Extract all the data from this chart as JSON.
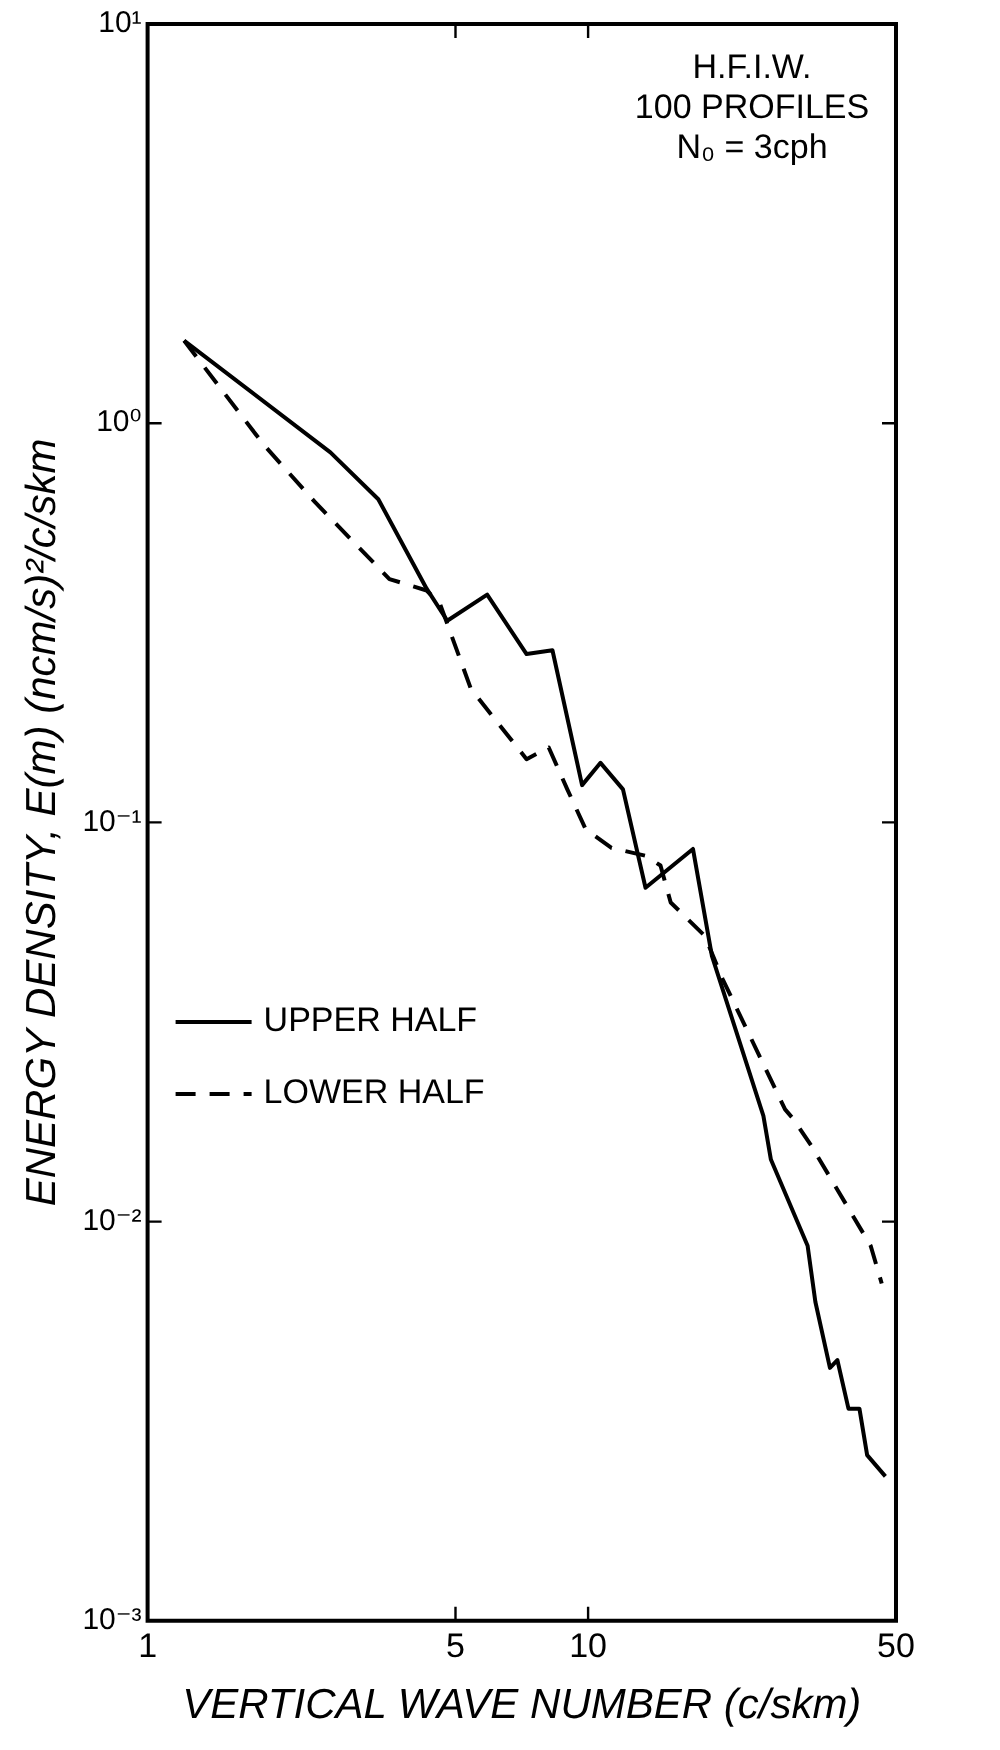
{
  "chart_data": {
    "type": "line",
    "xlabel": "VERTICAL WAVE NUMBER (c/skm)",
    "ylabel": "ENERGY DENSITY, E(m) (ncm/s)²/c/skm",
    "log": "xy",
    "xlim": [
      1,
      50
    ],
    "xticks": [
      1,
      5,
      10,
      50
    ],
    "ylim": [
      0.001,
      10
    ],
    "yticks": [
      {
        "value": 10,
        "label": "10¹"
      },
      {
        "value": 1,
        "label": "10⁰"
      },
      {
        "value": 0.1,
        "label": "10⁻¹"
      },
      {
        "value": 0.01,
        "label": "10⁻²"
      },
      {
        "value": 0.001,
        "label": "10⁻³"
      }
    ],
    "grid": false,
    "legend": "left",
    "marker": "none",
    "annotations": [
      "H.F.I.W.",
      "100 PROFILES",
      "N₀ = 3cph"
    ],
    "series": [
      {
        "name": "UPPER HALF",
        "color": "#000000",
        "line_style": "solid",
        "x": [
          1.21,
          2.6,
          3.34,
          4.3,
          4.79,
          5.9,
          7.25,
          8.3,
          9.69,
          10.67,
          12.0,
          13.5,
          17.3,
          19.1,
          25.0,
          26.0,
          31.5,
          32.8,
          35.4,
          36.8,
          39.0,
          41.3,
          43.0,
          47.3
        ],
        "values": [
          1.61,
          0.845,
          0.645,
          0.385,
          0.32,
          0.372,
          0.264,
          0.27,
          0.124,
          0.141,
          0.121,
          0.0686,
          0.0858,
          0.0463,
          0.0184,
          0.0143,
          0.0087,
          0.0063,
          0.0043,
          0.0045,
          0.0034,
          0.0034,
          0.0026,
          0.0023
        ]
      },
      {
        "name": "LOWER HALF",
        "color": "#000000",
        "line_style": "dashed",
        "x": [
          1.21,
          1.84,
          2.4,
          3.54,
          4.3,
          4.61,
          5.42,
          7.25,
          8.14,
          8.97,
          9.88,
          11.3,
          13.5,
          14.6,
          15.4,
          18.4,
          20.2,
          28.0,
          29.2,
          32.1,
          43.8,
          46.4
        ],
        "values": [
          1.61,
          0.88,
          0.634,
          0.407,
          0.381,
          0.353,
          0.216,
          0.144,
          0.154,
          0.121,
          0.096,
          0.0863,
          0.0825,
          0.078,
          0.063,
          0.052,
          0.0405,
          0.0191,
          0.0181,
          0.0155,
          0.0087,
          0.007
        ]
      }
    ]
  }
}
